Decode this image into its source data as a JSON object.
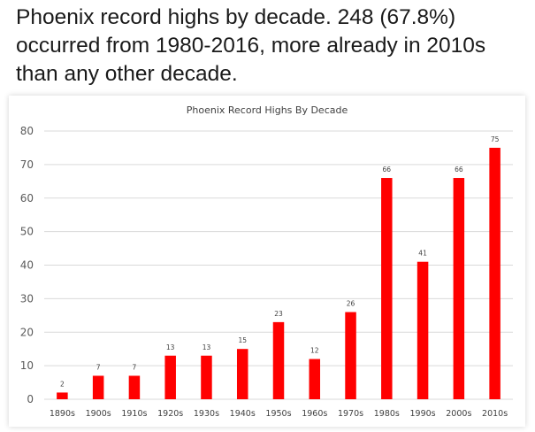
{
  "caption": "Phoenix record highs by decade. 248 (67.8%) occurred from 1980-2016, more already in 2010s than any other decade.",
  "chart_data": {
    "type": "bar",
    "title": "Phoenix Record Highs By Decade",
    "xlabel": "",
    "ylabel": "",
    "categories": [
      "1890s",
      "1900s",
      "1910s",
      "1920s",
      "1930s",
      "1940s",
      "1950s",
      "1960s",
      "1970s",
      "1980s",
      "1990s",
      "2000s",
      "2010s"
    ],
    "values": [
      2,
      7,
      7,
      13,
      13,
      15,
      23,
      12,
      26,
      66,
      41,
      66,
      75
    ],
    "ylim": [
      0,
      80
    ],
    "yticks": [
      0,
      10,
      20,
      30,
      40,
      50,
      60,
      70,
      80
    ],
    "grid": true,
    "legend": "none",
    "bar_color": "#ff0000",
    "grid_color": "#d9d9d9"
  }
}
